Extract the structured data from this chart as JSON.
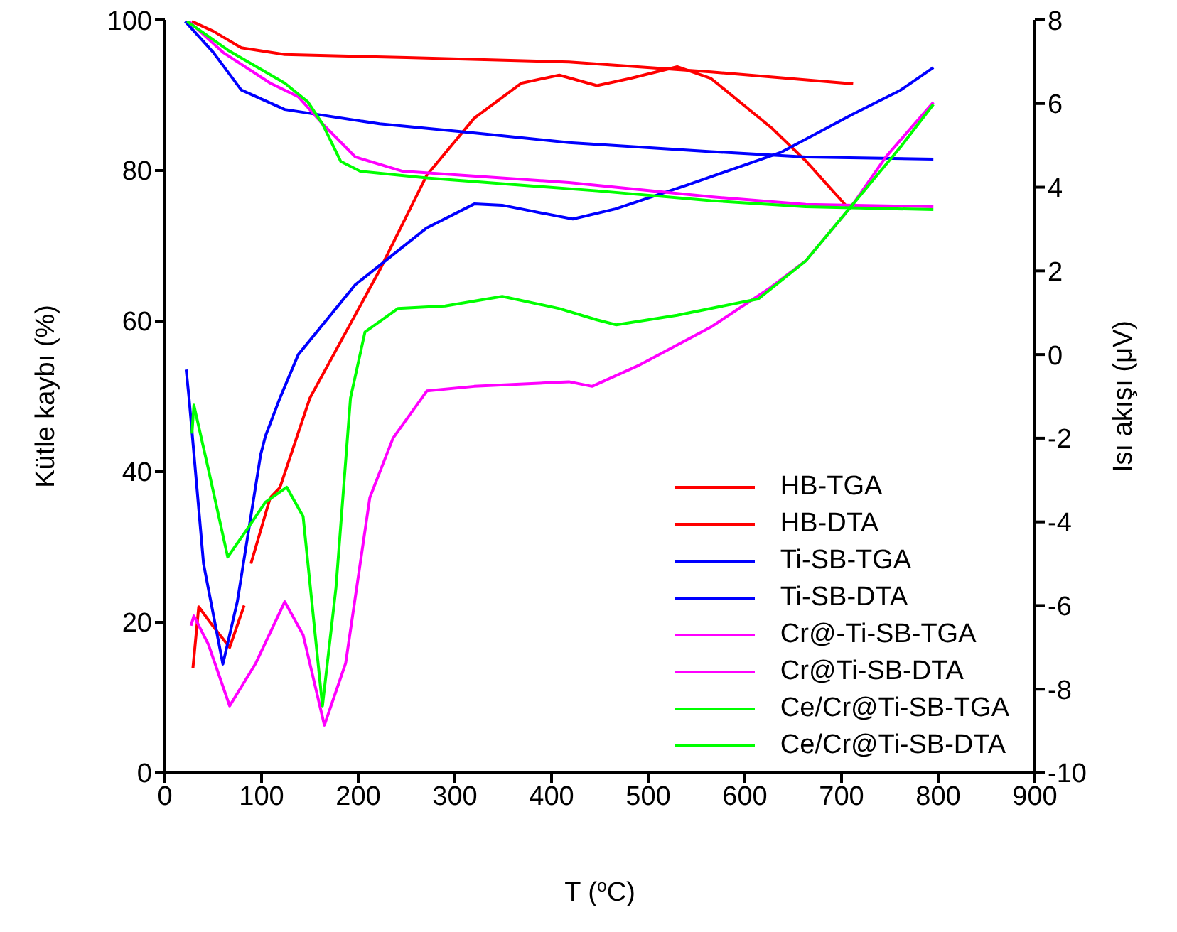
{
  "chart_data": {
    "type": "line",
    "xlabel": "T ($^{o}$C)",
    "ylabel": "Kütle kaybı (%)",
    "y2label": "Isı akışı (μV)",
    "xlim": [
      0,
      900
    ],
    "xticks": [
      0,
      100,
      200,
      300,
      400,
      500,
      600,
      700,
      800,
      900
    ],
    "ylim": [
      0,
      100
    ],
    "yticks": [
      0,
      20,
      40,
      60,
      80,
      100
    ],
    "y2lim": [
      -10,
      8
    ],
    "y2ticks": [
      -10,
      -8,
      -6,
      -4,
      -2,
      0,
      2,
      4,
      6,
      8
    ],
    "grid": false,
    "legend": "bottom right",
    "marker": "none",
    "line_style": "solid",
    "series": [
      {
        "name": "HB-TGA",
        "color": "#ff0000",
        "x": [
          28,
          50,
          79,
          124,
          250,
          418,
          565,
          712
        ],
        "values": [
          99.8,
          98.5,
          96.3,
          95.4,
          95.0,
          94.4,
          93.1,
          91.5
        ]
      },
      {
        "name": "HB-DTA",
        "color": "#ff0000",
        "axis": "y2",
        "x": [
          29,
          35,
          50,
          67,
          82,
          85,
          89,
          109,
          119,
          150,
          222,
          271,
          320,
          369,
          408,
          447,
          481,
          530,
          565,
          628,
          663,
          707
        ],
        "values": [
          -7.5,
          -6.03,
          -6.5,
          -7.0,
          -6.0,
          null,
          -5.0,
          -3.42,
          -3.18,
          -1.04,
          2.01,
          4.29,
          5.65,
          6.49,
          6.68,
          6.43,
          6.6,
          6.88,
          6.6,
          5.41,
          4.63,
          3.5
        ]
      },
      {
        "name": "Ti-SB-TGA",
        "color": "#0000ff",
        "x": [
          21,
          50,
          79,
          124,
          222,
          319,
          418,
          565,
          663,
          795
        ],
        "values": [
          99.8,
          95.7,
          90.7,
          88.1,
          86.2,
          85.0,
          83.7,
          82.5,
          81.8,
          81.5
        ]
      },
      {
        "name": "Ti-SB-DTA",
        "color": "#0000ff",
        "axis": "y2",
        "x": [
          22,
          25,
          40,
          60,
          75,
          99,
          104,
          119,
          138,
          197,
          271,
          320,
          349,
          393,
          422,
          466,
          540,
          638,
          712,
          761,
          795
        ],
        "values": [
          -0.36,
          -1.04,
          -5.0,
          -7.4,
          -5.9,
          -2.4,
          -1.95,
          -1.04,
          0.0,
          1.67,
          3.03,
          3.6,
          3.57,
          3.37,
          3.24,
          3.48,
          4.05,
          4.84,
          5.75,
          6.32,
          6.86
        ]
      },
      {
        "name": "Cr@-Ti-SB-TGA",
        "color": "#ff00ff",
        "x": [
          25,
          60,
          109,
          138,
          163,
          197,
          246,
          418,
          565,
          663,
          795
        ],
        "values": [
          99.8,
          95.7,
          91.6,
          89.8,
          86.2,
          81.8,
          79.9,
          78.4,
          76.5,
          75.5,
          75.2
        ]
      },
      {
        "name": "Cr@Ti-SB-DTA",
        "color": "#ff00ff",
        "axis": "y2",
        "x": [
          27,
          30,
          45,
          67,
          94,
          124,
          143,
          165,
          187,
          212,
          236,
          271,
          320,
          418,
          442,
          491,
          565,
          624,
          663,
          712,
          746,
          795
        ],
        "values": [
          -6.48,
          -6.25,
          -6.93,
          -8.4,
          -7.38,
          -5.91,
          -6.7,
          -8.86,
          -7.38,
          -3.42,
          -2.0,
          -0.87,
          -0.76,
          -0.65,
          -0.76,
          -0.25,
          0.66,
          1.56,
          2.24,
          3.6,
          4.73,
          6.03
        ]
      },
      {
        "name": "Ce/Cr@Ti-SB-TGA",
        "color": "#00ff00",
        "x": [
          23,
          65,
          124,
          148,
          163,
          182,
          202,
          271,
          447,
          565,
          663,
          795
        ],
        "values": [
          99.8,
          96.0,
          91.6,
          89.1,
          86.2,
          81.2,
          79.9,
          79.0,
          77.3,
          76.0,
          75.2,
          74.8
        ]
      },
      {
        "name": "Ce/Cr@Ti-SB-DTA",
        "color": "#00ff00",
        "axis": "y2",
        "x": [
          28,
          30,
          45,
          65,
          84,
          104,
          126,
          143,
          163,
          177,
          192,
          207,
          241,
          290,
          349,
          408,
          447,
          467,
          530,
          614,
          663,
          712,
          761,
          795
        ],
        "values": [
          -1.89,
          -1.21,
          -2.74,
          -4.84,
          -4.21,
          -3.53,
          -3.17,
          -3.87,
          -8.4,
          -5.57,
          -1.04,
          0.54,
          1.1,
          1.16,
          1.39,
          1.1,
          0.83,
          0.71,
          0.94,
          1.33,
          2.24,
          3.6,
          4.96,
          5.98
        ]
      }
    ]
  }
}
